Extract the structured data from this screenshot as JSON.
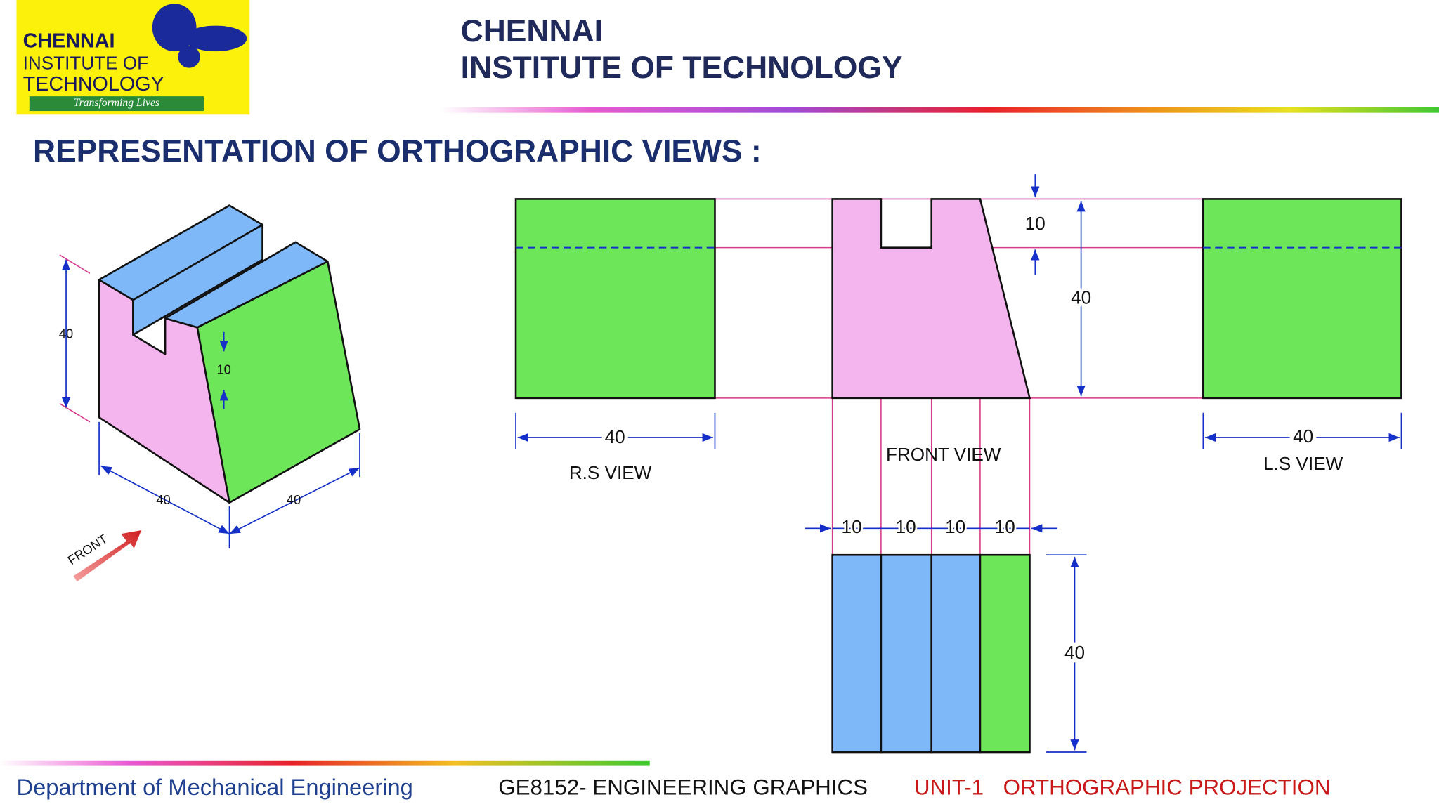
{
  "logo": {
    "line1": "CHENNAI",
    "line2": "INSTITUTE OF",
    "line3": "TECHNOLOGY",
    "tagline": "Transforming Lives"
  },
  "header": {
    "line1": "CHENNAI",
    "line2": "INSTITUTE OF TECHNOLOGY"
  },
  "title": "REPRESENTATION OF ORTHOGRAPHIC VIEWS :",
  "isometric": {
    "height": "40",
    "slot_depth": "10",
    "width_left": "40",
    "width_right": "40",
    "front_label": "FRONT"
  },
  "views": {
    "rs": {
      "label": "R.S VIEW",
      "width": "40"
    },
    "front": {
      "label": "FRONT VIEW",
      "slot_depth": "10",
      "height": "40"
    },
    "ls": {
      "label": "L.S VIEW",
      "width": "40"
    },
    "top": {
      "widths": [
        "10",
        "10",
        "10",
        "10"
      ],
      "height": "40"
    }
  },
  "footer": {
    "department": "Department of Mechanical Engineering",
    "course": "GE8152- ENGINEERING GRAPHICS",
    "unit": "UNIT-1",
    "topic": "ORTHOGRAPHIC PROJECTION"
  }
}
